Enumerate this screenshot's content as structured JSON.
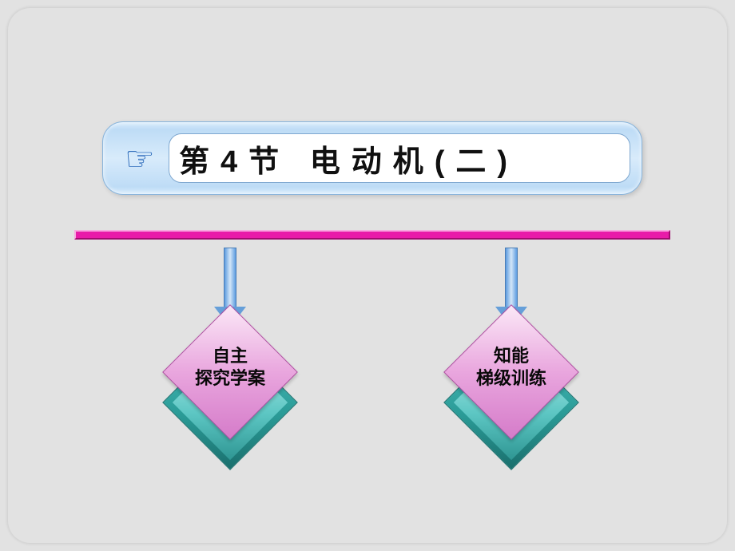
{
  "title": {
    "hand_icon": "☞",
    "text": "第4节 电动机(二)"
  },
  "divider": {
    "color": "#e91ba9"
  },
  "arrows": {
    "shaft_gradient": [
      "#5d9ce0",
      "#d3e6f8",
      "#5d9ce0"
    ],
    "head_color": "#669fd9"
  },
  "cards": [
    {
      "line1": "自主",
      "line2": "探究学案"
    },
    {
      "line1": "知能",
      "line2": "梯级训练"
    }
  ],
  "card_style": {
    "top_fill": [
      "#fbe8f7",
      "#e9a6de",
      "#d57bc9"
    ],
    "bottom_fill": [
      "#4ec5c2",
      "#2a9a96",
      "#1a6f6d"
    ]
  },
  "background_color": "#e2e2e2"
}
